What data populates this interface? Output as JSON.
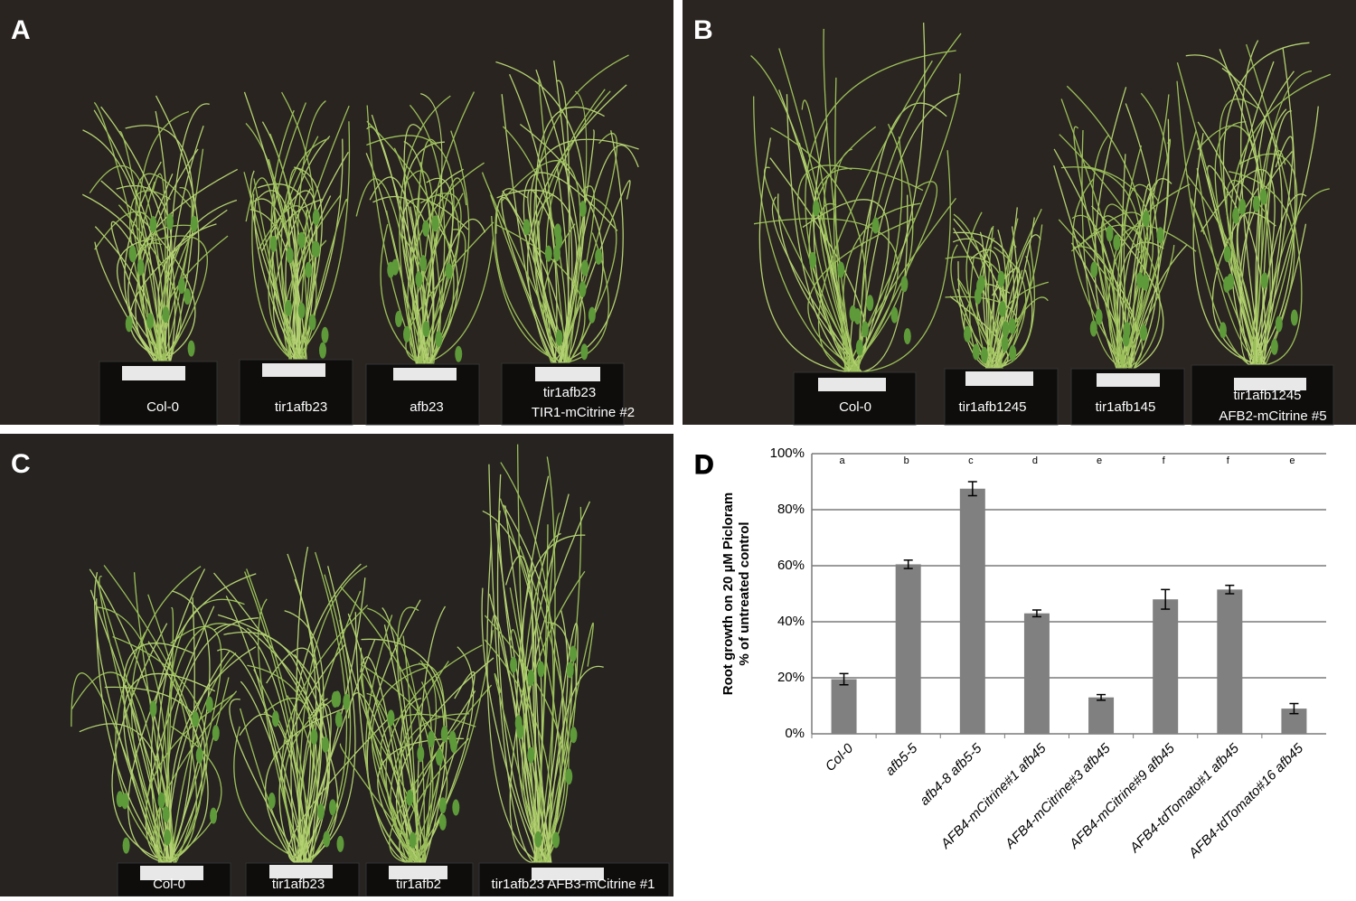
{
  "panels": [
    {
      "label": "A",
      "captions": [
        "Col-0",
        "tir1afb23",
        "afb23",
        "tir1afb23",
        "TIR1-mCitrine  #2"
      ]
    },
    {
      "label": "B",
      "captions": [
        "Col-0",
        "tir1afb1245",
        "tir1afb145",
        "tir1afb1245",
        "AFB2-mCitrine  #5"
      ]
    },
    {
      "label": "C",
      "captions": [
        "Col-0",
        "tir1afb23",
        "tir1afb2",
        "tir1afb23 AFB3-mCitrine   #1"
      ]
    }
  ],
  "chart_data": {
    "type": "bar",
    "panel_label": "D",
    "y_label": [
      "Root growth on 20 µM Picloram",
      "% of untreated control"
    ],
    "categories": [
      "Col-0",
      "afb5-5",
      "afb4-8 afb5-5",
      "AFB4-mCitrine#1 afb45",
      "AFB4-mCitrine#3 afb45",
      "AFB4-mCitrine#9 afb45",
      "AFB4-tdTomato#1 afb45",
      "AFB4-tdTomato#16 afb45"
    ],
    "values": [
      19.5,
      60.5,
      87.5,
      43,
      13,
      48,
      51.5,
      9
    ],
    "errors": [
      2,
      1.5,
      2.5,
      1.2,
      1,
      3.5,
      1.5,
      1.8
    ],
    "letters": [
      "a",
      "b",
      "c",
      "d",
      "e",
      "f",
      "f",
      "e"
    ],
    "color": "#808080",
    "ylim": [
      0,
      100
    ],
    "yticks": [
      {
        "value": 0,
        "label": "0%"
      },
      {
        "value": 20,
        "label": "20%"
      },
      {
        "value": 40,
        "label": "40%"
      },
      {
        "value": 60,
        "label": "60%"
      },
      {
        "value": 80,
        "label": "80%"
      },
      {
        "value": 100,
        "label": "100%"
      }
    ],
    "grid": true
  }
}
